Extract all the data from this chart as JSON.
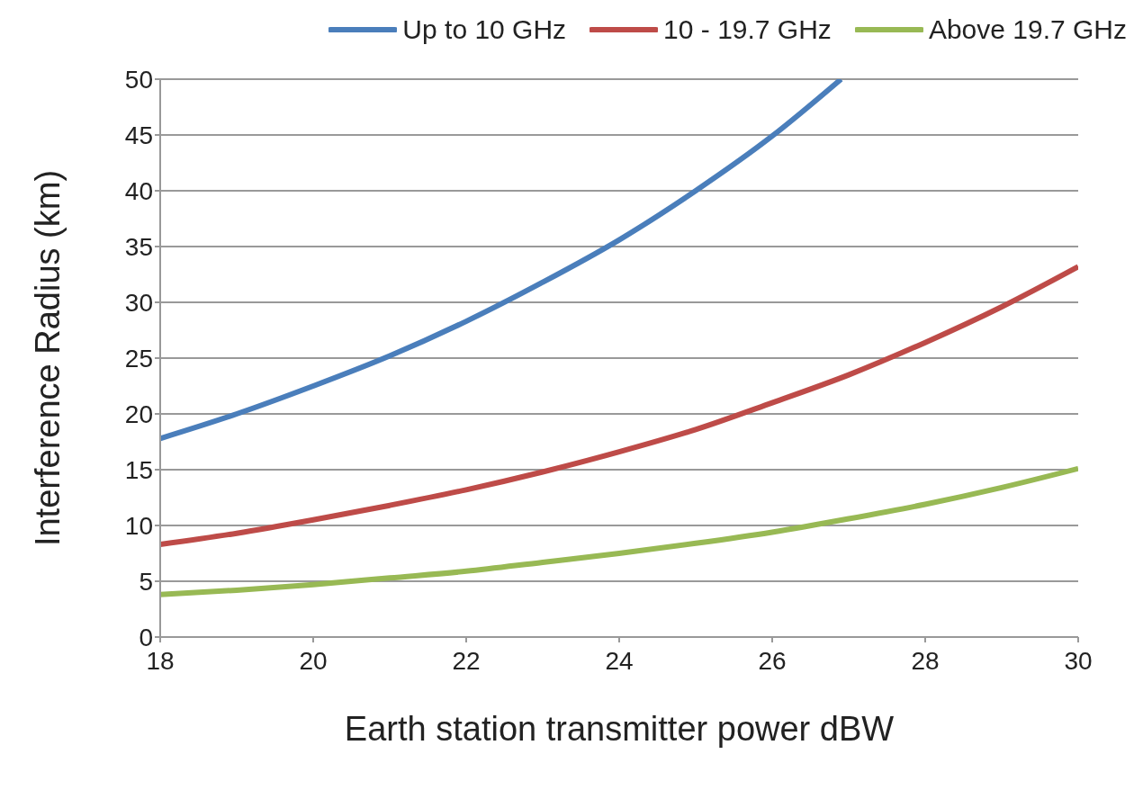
{
  "chart_data": {
    "type": "line",
    "xlabel": "Earth station transmitter power dBW",
    "ylabel": "Interference Radius (km)",
    "xlim": [
      18,
      30
    ],
    "xticks": [
      18,
      20,
      22,
      24,
      26,
      28,
      30
    ],
    "ylim": [
      0,
      50
    ],
    "yticks": [
      0,
      5,
      10,
      15,
      20,
      25,
      30,
      35,
      40,
      45,
      50
    ],
    "grid": "y",
    "legend": "top",
    "marker": "none",
    "line_style": "solid",
    "series": [
      {
        "name": "Up to 10 GHz",
        "color": "#4a7ebb",
        "x": [
          18,
          19,
          20,
          21,
          22,
          23,
          24,
          25,
          26,
          26.9
        ],
        "values": [
          17.8,
          20.0,
          22.5,
          25.2,
          28.3,
          31.8,
          35.6,
          40,
          44.9,
          50
        ]
      },
      {
        "name": "10 - 19.7 GHz",
        "color": "#be4b48",
        "x": [
          18,
          19,
          20,
          21,
          22,
          23,
          24,
          25,
          26,
          27,
          28,
          29,
          30
        ],
        "values": [
          8.3,
          9.3,
          10.5,
          11.8,
          13.2,
          14.8,
          16.6,
          18.6,
          21,
          23.5,
          26.4,
          29.6,
          33.2
        ]
      },
      {
        "name": "Above 19.7 GHz",
        "color": "#98b954",
        "x": [
          18,
          19,
          20,
          21,
          22,
          23,
          24,
          25,
          26,
          27,
          28,
          29,
          30
        ],
        "values": [
          3.8,
          4.2,
          4.7,
          5.3,
          5.9,
          6.7,
          7.5,
          8.4,
          9.4,
          10.6,
          11.9,
          13.4,
          15.1
        ]
      }
    ]
  }
}
